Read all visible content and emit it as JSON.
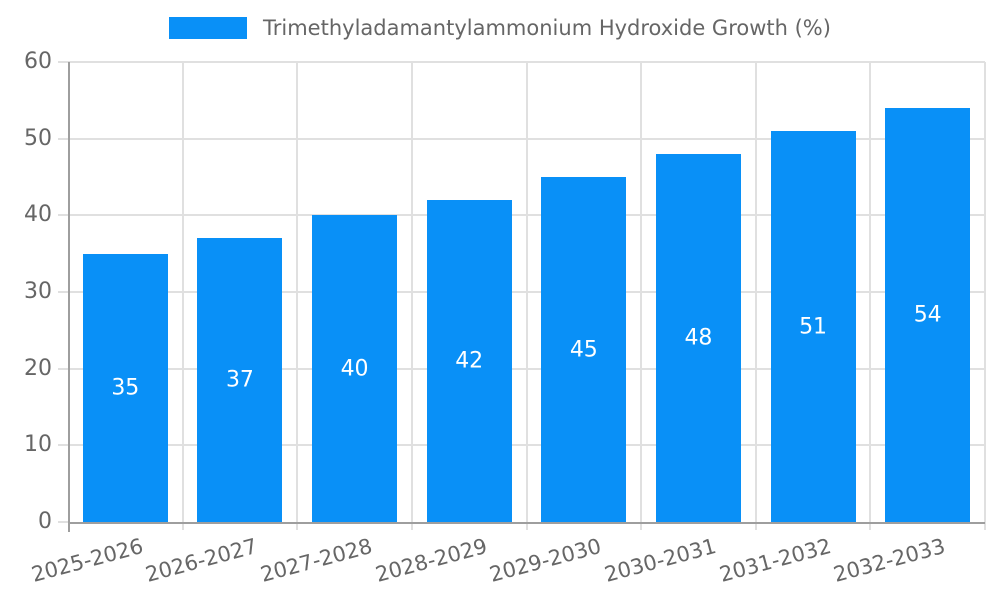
{
  "chart_data": {
    "type": "bar",
    "title": "",
    "legend": {
      "label": "Trimethyladamantylammonium Hydroxide Growth (%)",
      "position": "top-center"
    },
    "categories": [
      "2025-2026",
      "2026-2027",
      "2027-2028",
      "2028-2029",
      "2029-2030",
      "2030-2031",
      "2031-2032",
      "2032-2033"
    ],
    "values": [
      35,
      37,
      40,
      42,
      45,
      48,
      51,
      54
    ],
    "bar_value_labels": [
      "35",
      "37",
      "40",
      "42",
      "45",
      "48",
      "51",
      "54"
    ],
    "xlabel": "",
    "ylabel": "",
    "ylim": [
      0,
      60
    ],
    "yticks": [
      0,
      10,
      20,
      30,
      40,
      50,
      60
    ],
    "grid": "both",
    "x_label_rotation_deg": -15,
    "colors": {
      "bar": "#0990f7",
      "bar_value_text": "#ffffff",
      "axis_line": "#9e9e9e",
      "gridline": "#e0e0e0",
      "tick_text": "#666666",
      "legend_text": "#666666",
      "background": "#ffffff"
    }
  }
}
